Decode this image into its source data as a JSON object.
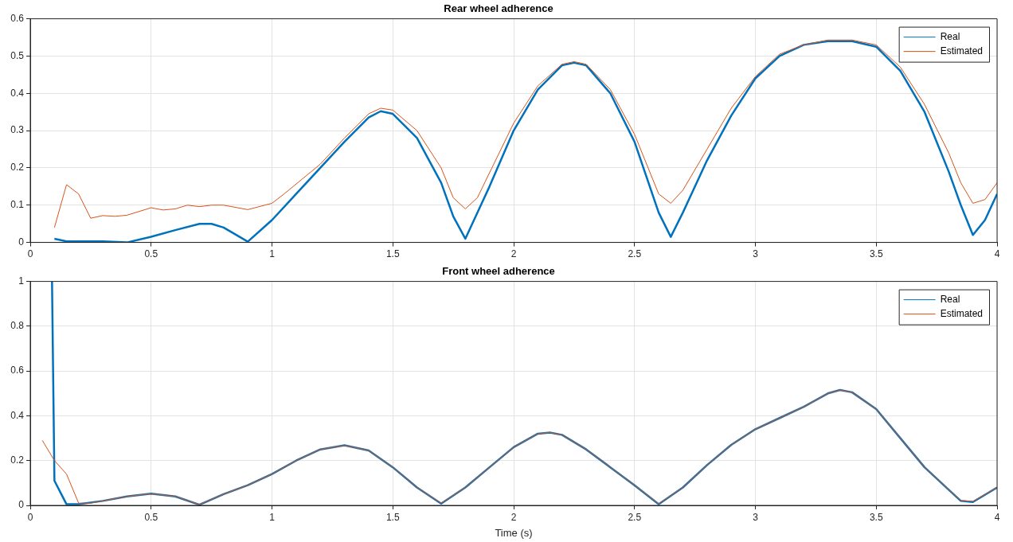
{
  "chart_data": [
    {
      "type": "line",
      "title": "Rear wheel adherence",
      "xlim": [
        0,
        4
      ],
      "xticks": [
        0,
        0.5,
        1,
        1.5,
        2,
        2.5,
        3,
        3.5,
        4
      ],
      "ylim": [
        0,
        0.6
      ],
      "yticks": [
        0,
        0.1,
        0.2,
        0.3,
        0.4,
        0.5,
        0.6
      ],
      "grid": true,
      "legend": "top right",
      "series": [
        {
          "name": "Real",
          "color": "#0072bd",
          "x": [
            0.1,
            0.15,
            0.2,
            0.3,
            0.4,
            0.5,
            0.6,
            0.7,
            0.75,
            0.8,
            0.9,
            1.0,
            1.1,
            1.2,
            1.3,
            1.4,
            1.45,
            1.5,
            1.6,
            1.7,
            1.75,
            1.8,
            1.9,
            2.0,
            2.1,
            2.2,
            2.25,
            2.3,
            2.4,
            2.5,
            2.6,
            2.65,
            2.7,
            2.8,
            2.9,
            3.0,
            3.1,
            3.2,
            3.3,
            3.4,
            3.5,
            3.6,
            3.7,
            3.8,
            3.85,
            3.9,
            3.95,
            4.0
          ],
          "values": [
            0.01,
            0.003,
            0.003,
            0.003,
            0.0,
            0.015,
            0.033,
            0.05,
            0.05,
            0.04,
            0.002,
            0.06,
            0.13,
            0.2,
            0.27,
            0.335,
            0.352,
            0.345,
            0.28,
            0.16,
            0.07,
            0.01,
            0.15,
            0.3,
            0.41,
            0.475,
            0.482,
            0.475,
            0.4,
            0.27,
            0.08,
            0.015,
            0.08,
            0.22,
            0.34,
            0.44,
            0.5,
            0.53,
            0.54,
            0.54,
            0.525,
            0.46,
            0.35,
            0.19,
            0.1,
            0.02,
            0.06,
            0.13
          ]
        },
        {
          "name": "Estimated",
          "color": "#d95319",
          "x": [
            0.1,
            0.15,
            0.2,
            0.25,
            0.3,
            0.35,
            0.4,
            0.5,
            0.55,
            0.6,
            0.65,
            0.7,
            0.75,
            0.8,
            0.9,
            1.0,
            1.05,
            1.2,
            1.3,
            1.4,
            1.45,
            1.5,
            1.6,
            1.7,
            1.75,
            1.8,
            1.85,
            2.0,
            2.1,
            2.2,
            2.25,
            2.3,
            2.4,
            2.5,
            2.6,
            2.65,
            2.7,
            2.8,
            2.9,
            3.0,
            3.1,
            3.2,
            3.3,
            3.4,
            3.5,
            3.6,
            3.7,
            3.8,
            3.85,
            3.9,
            3.95,
            4.0
          ],
          "values": [
            0.04,
            0.155,
            0.13,
            0.065,
            0.072,
            0.07,
            0.073,
            0.093,
            0.087,
            0.09,
            0.1,
            0.096,
            0.1,
            0.1,
            0.088,
            0.105,
            0.13,
            0.21,
            0.28,
            0.345,
            0.36,
            0.355,
            0.3,
            0.2,
            0.12,
            0.09,
            0.12,
            0.32,
            0.42,
            0.478,
            0.485,
            0.478,
            0.41,
            0.29,
            0.13,
            0.105,
            0.14,
            0.25,
            0.36,
            0.445,
            0.505,
            0.53,
            0.543,
            0.543,
            0.53,
            0.47,
            0.37,
            0.24,
            0.16,
            0.105,
            0.115,
            0.16
          ]
        }
      ]
    },
    {
      "type": "line",
      "title": "Front wheel adherence",
      "xlabel": "Time (s)",
      "xlim": [
        0,
        4
      ],
      "xticks": [
        0,
        0.5,
        1,
        1.5,
        2,
        2.5,
        3,
        3.5,
        4
      ],
      "ylim": [
        0,
        1
      ],
      "yticks": [
        0,
        0.2,
        0.4,
        0.6,
        0.8,
        1
      ],
      "grid": true,
      "legend": "top right",
      "series": [
        {
          "name": "Real",
          "color": "#0072bd",
          "x": [
            0.09,
            0.1,
            0.15,
            0.2,
            0.3,
            0.4,
            0.5,
            0.6,
            0.7,
            0.8,
            0.9,
            1.0,
            1.1,
            1.2,
            1.3,
            1.4,
            1.5,
            1.6,
            1.7,
            1.8,
            1.9,
            2.0,
            2.1,
            2.15,
            2.2,
            2.3,
            2.4,
            2.5,
            2.6,
            2.7,
            2.8,
            2.9,
            3.0,
            3.1,
            3.2,
            3.3,
            3.35,
            3.4,
            3.5,
            3.6,
            3.7,
            3.8,
            3.85,
            3.9,
            4.0
          ],
          "values": [
            1.0,
            0.11,
            0.005,
            0.005,
            0.02,
            0.04,
            0.052,
            0.04,
            0.003,
            0.05,
            0.09,
            0.14,
            0.2,
            0.25,
            0.268,
            0.245,
            0.17,
            0.08,
            0.008,
            0.08,
            0.17,
            0.26,
            0.32,
            0.325,
            0.315,
            0.25,
            0.17,
            0.09,
            0.005,
            0.08,
            0.18,
            0.27,
            0.34,
            0.39,
            0.44,
            0.5,
            0.515,
            0.505,
            0.43,
            0.3,
            0.17,
            0.07,
            0.02,
            0.015,
            0.08
          ]
        },
        {
          "name": "Estimated",
          "color": "#d95319",
          "x": [
            0.05,
            0.1,
            0.15,
            0.2,
            0.25,
            0.3,
            0.4,
            0.5,
            0.6,
            0.7,
            0.8,
            0.9,
            1.0,
            1.1,
            1.2,
            1.3,
            1.4,
            1.5,
            1.6,
            1.7,
            1.8,
            1.9,
            2.0,
            2.1,
            2.15,
            2.2,
            2.3,
            2.4,
            2.5,
            2.6,
            2.7,
            2.8,
            2.9,
            3.0,
            3.1,
            3.2,
            3.3,
            3.35,
            3.4,
            3.5,
            3.6,
            3.7,
            3.8,
            3.85,
            3.9,
            4.0
          ],
          "values": [
            0.29,
            0.2,
            0.14,
            0.01,
            0.01,
            0.02,
            0.04,
            0.052,
            0.04,
            0.004,
            0.05,
            0.09,
            0.14,
            0.2,
            0.25,
            0.268,
            0.245,
            0.17,
            0.08,
            0.01,
            0.08,
            0.17,
            0.26,
            0.32,
            0.325,
            0.315,
            0.25,
            0.17,
            0.09,
            0.007,
            0.08,
            0.18,
            0.27,
            0.34,
            0.39,
            0.44,
            0.5,
            0.515,
            0.505,
            0.43,
            0.3,
            0.17,
            0.07,
            0.022,
            0.018,
            0.08
          ]
        }
      ]
    }
  ]
}
